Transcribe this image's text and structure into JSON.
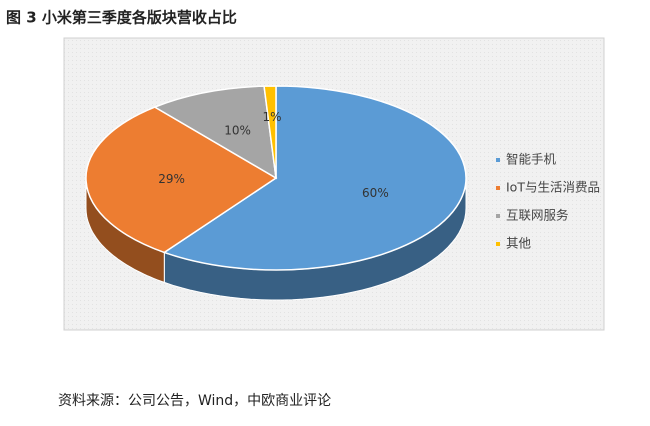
{
  "chart_data": {
    "type": "pie",
    "title": "图 3 小米第三季度各版块营收占比",
    "categories": [
      "智能手机",
      "IoT与生活消费品",
      "互联网服务",
      "其他"
    ],
    "values": [
      60,
      29,
      10,
      1
    ],
    "value_labels": [
      "60%",
      "29%",
      "10%",
      "1%"
    ],
    "colors": [
      "#5b9bd5",
      "#ed7d31",
      "#a5a5a5",
      "#ffc000"
    ],
    "legend": "right"
  },
  "source": "资料来源：公司公告，Wind，中欧商业评论"
}
